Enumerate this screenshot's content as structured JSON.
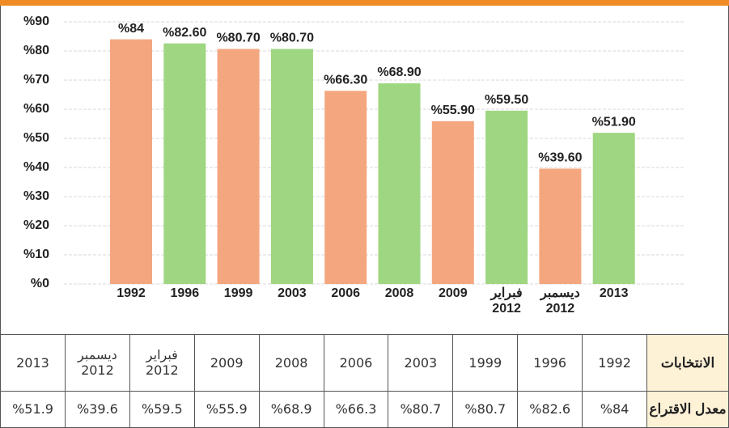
{
  "chart_data": {
    "type": "bar",
    "categories": [
      "1992",
      "1996",
      "1999",
      "2003",
      "2006",
      "2008",
      "2009",
      "فبراير 2012",
      "ديسمبر 2012",
      "2013"
    ],
    "values": [
      84,
      82.6,
      80.7,
      80.7,
      66.3,
      68.9,
      55.9,
      59.5,
      39.6,
      51.9
    ],
    "value_labels": [
      "%84",
      "%82.60",
      "%80.70",
      "%80.70",
      "%66.30",
      "%68.90",
      "%55.90",
      "%59.50",
      "%39.60",
      "%51.90"
    ],
    "colors": [
      "#f4a67e",
      "#9fd681",
      "#f4a67e",
      "#9fd681",
      "#f4a67e",
      "#9fd681",
      "#f4a67e",
      "#9fd681",
      "#f4a67e",
      "#9fd681"
    ],
    "ylim": [
      0,
      90
    ],
    "yticks": [
      {
        "value": 0,
        "label": "%0"
      },
      {
        "value": 10,
        "label": "%10"
      },
      {
        "value": 20,
        "label": "%20"
      },
      {
        "value": 30,
        "label": "%30"
      },
      {
        "value": 40,
        "label": "%40"
      },
      {
        "value": 50,
        "label": "%50"
      },
      {
        "value": 60,
        "label": "%60"
      },
      {
        "value": 70,
        "label": "%70"
      },
      {
        "value": 80,
        "label": "%80"
      },
      {
        "value": 90,
        "label": "%90"
      }
    ],
    "grid": true
  },
  "table": {
    "header": "الانتخابات",
    "years": [
      "1992",
      "1996",
      "1999",
      "2003",
      "2006",
      "2008",
      "2009",
      "فبراير 2012",
      "ديسمبر 2012",
      "2013"
    ],
    "rate_label": "معدل الاقتراع",
    "rates": [
      "%84",
      "%82.6",
      "%80.7",
      "%80.7",
      "%66.3",
      "%68.9",
      "%55.9",
      "%59.5",
      "%39.6",
      "%51.9"
    ]
  }
}
